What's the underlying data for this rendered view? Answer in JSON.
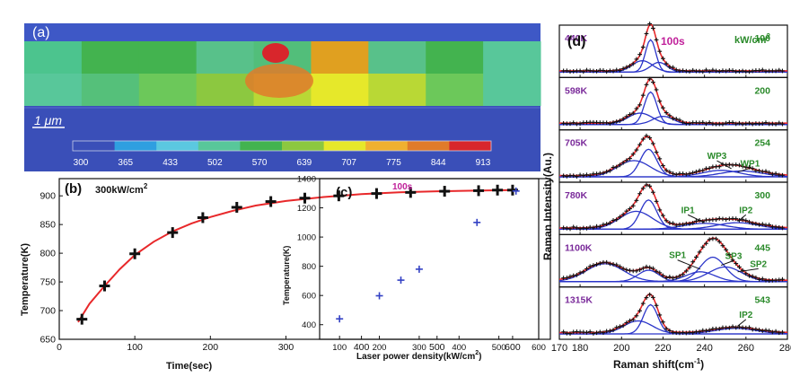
{
  "colors": {
    "bar_blue": "#3a4fb8",
    "stripe_band": "#3d9e8a",
    "hot_yellow": "#e6e82a",
    "hot_orange": "#e07b2a",
    "hot_red": "#d8262c",
    "fit_red": "#e8282a",
    "fit_blue": "#2b35c9",
    "marker_black": "#111111",
    "marker_blue": "#3341c4",
    "label_purple": "#7a2a9a",
    "label_green": "#2a8a2a",
    "label_magenta": "#c0209a"
  },
  "panel_a": {
    "label": "(a)",
    "scale_label": "1 μm",
    "colorbar_ticks": [
      "300",
      "365",
      "433",
      "502",
      "570",
      "639",
      "707",
      "775",
      "844",
      "913"
    ],
    "colorbar_colors": [
      "#3a4fb8",
      "#2f9fe0",
      "#5bc8e0",
      "#58c79a",
      "#43b34f",
      "#8cc840",
      "#e6e82a",
      "#f0b030",
      "#e07b2a",
      "#d8262c"
    ],
    "stripe_cells": [
      {
        "top": "#4cc48e",
        "bottom": "#58c79a"
      },
      {
        "top": "#43b34f",
        "bottom": "#55c07a"
      },
      {
        "top": "#43b34f",
        "bottom": "#6cc85a"
      },
      {
        "top": "#58c18a",
        "bottom": "#8cc840"
      },
      {
        "top": "#52be7a",
        "bottom": "#b9d835"
      },
      {
        "top": "#e0a020",
        "bottom": "#e6e82a"
      },
      {
        "top": "#58c18a",
        "bottom": "#b9d835"
      },
      {
        "top": "#43b34f",
        "bottom": "#6cc85a"
      },
      {
        "top": "#58c79a",
        "bottom": "#58c79a"
      }
    ]
  },
  "chart_data": [
    {
      "panel": "(b)",
      "type": "line",
      "annotation": "300kW/cm",
      "annotation_sup": "2",
      "xlabel": "Time(sec)",
      "ylabel": "Temperature(K)",
      "xlim": [
        0,
        650
      ],
      "ylim": [
        650,
        930
      ],
      "xticks": [
        0,
        100,
        200,
        300,
        400,
        500,
        600
      ],
      "yticks": [
        650,
        700,
        750,
        800,
        850,
        900
      ],
      "x": [
        30,
        60,
        100,
        150,
        190,
        235,
        280,
        325,
        370,
        420,
        465,
        510,
        555,
        580,
        600
      ],
      "y": [
        685,
        743,
        799,
        836,
        862,
        880,
        890,
        896,
        900,
        904,
        906,
        908,
        909,
        910,
        910
      ],
      "fit_x": [
        25,
        40,
        60,
        80,
        100,
        125,
        150,
        175,
        200,
        230,
        260,
        300,
        350,
        400,
        450,
        500,
        550,
        600
      ],
      "fit_y": [
        680,
        712,
        743,
        772,
        797,
        820,
        838,
        852,
        863,
        874,
        883,
        891,
        898,
        903,
        906,
        908,
        909,
        910
      ]
    },
    {
      "panel": "(c)",
      "type": "scatter",
      "annotation": "100s",
      "xlabel": "Laser power density(kW/cm",
      "xlabel_sup": "2",
      "xlabel_end": ")",
      "ylabel": "Temperature(K)",
      "xlim": [
        50,
        600
      ],
      "ylim": [
        300,
        1400
      ],
      "xticks": [
        100,
        200,
        300,
        400,
        500,
        600
      ],
      "yticks": [
        400,
        600,
        800,
        1000,
        1200,
        1400
      ],
      "x": [
        100,
        200,
        254,
        300,
        445,
        543
      ],
      "y": [
        440,
        598,
        705,
        780,
        1100,
        1315
      ]
    },
    {
      "panel": "(d)",
      "type": "line",
      "header_time": "100s",
      "header_unit": "kW/cm",
      "header_unit_sup": "2",
      "xlabel": "Raman shift(cm",
      "xlabel_sup": "-1",
      "xlabel_end": ")",
      "ylabel": "Raman Intensity(Au.)",
      "xlim": [
        170,
        280
      ],
      "xticks": [
        180,
        200,
        220,
        240,
        260,
        280
      ],
      "spectra": [
        {
          "temp": "440K",
          "power": "100",
          "annotations": [],
          "peaks": [
            [
              214,
              1.0,
              2.5
            ],
            [
              210,
              0.35,
              5
            ],
            [
              218,
              0.3,
              4
            ]
          ]
        },
        {
          "temp": "598K",
          "power": "200",
          "annotations": [],
          "peaks": [
            [
              214,
              1.0,
              3
            ],
            [
              209,
              0.35,
              6
            ],
            [
              220,
              0.25,
              5
            ]
          ]
        },
        {
          "temp": "705K",
          "power": "254",
          "annotations": [
            "WP3",
            "WP1"
          ],
          "peaks": [
            [
              213,
              0.85,
              4
            ],
            [
              206,
              0.5,
              8
            ],
            [
              248,
              0.2,
              9
            ],
            [
              258,
              0.18,
              10
            ]
          ]
        },
        {
          "temp": "780K",
          "power": "300",
          "annotations": [
            "IP1",
            "IP2"
          ],
          "peaks": [
            [
              213,
              0.9,
              4
            ],
            [
              207,
              0.55,
              8
            ],
            [
              240,
              0.18,
              10
            ],
            [
              256,
              0.2,
              10
            ]
          ]
        },
        {
          "temp": "1100K",
          "power": "445",
          "annotations": [
            "SP1",
            "SP3",
            "SP2"
          ],
          "peaks": [
            [
              192,
              0.55,
              9
            ],
            [
              213,
              0.35,
              5
            ],
            [
              244,
              0.75,
              6
            ],
            [
              250,
              0.45,
              8
            ],
            [
              238,
              0.3,
              7
            ]
          ]
        },
        {
          "temp": "1315K",
          "power": "543",
          "annotations": [
            "IP2"
          ],
          "peaks": [
            [
              214,
              0.9,
              3.5
            ],
            [
              208,
              0.4,
              7
            ],
            [
              255,
              0.17,
              10
            ]
          ]
        }
      ]
    }
  ]
}
